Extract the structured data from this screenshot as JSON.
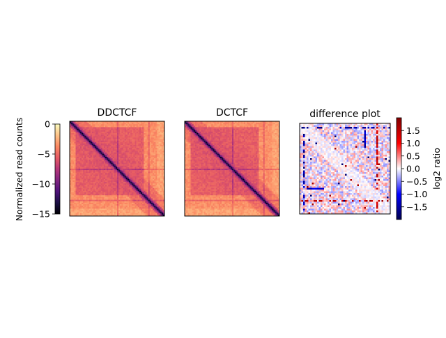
{
  "chart_data": [
    {
      "type": "colorbar",
      "label": "Normalized read counts",
      "colormap": "magma",
      "range": [
        -15,
        0
      ],
      "ticks": [
        0,
        -5,
        -10,
        -15
      ],
      "tick_labels": [
        "0",
        "−5",
        "−10",
        "−15"
      ]
    },
    {
      "type": "heatmap",
      "title": "DDCTCF",
      "colormap": "magma",
      "value_range": [
        -15,
        0
      ],
      "features": {
        "diagonal_value": -14,
        "background_value": -3.5,
        "domain_interior_value": -6,
        "domain_bounds_fraction": [
          0.06,
          0.78
        ],
        "stripe_positions_fraction": [
          0.5,
          0.83
        ]
      }
    },
    {
      "type": "heatmap",
      "title": "DCTCF",
      "colormap": "magma",
      "value_range": [
        -15,
        0
      ],
      "features": {
        "diagonal_value": -14,
        "background_value": -3.5,
        "domain_interior_value": -6,
        "domain_bounds_fraction": [
          0.06,
          0.78
        ],
        "stripe_positions_fraction": [
          0.5,
          0.83
        ]
      }
    },
    {
      "type": "heatmap",
      "title": "difference plot",
      "colormap": "seismic",
      "value_range": [
        -2,
        2
      ]
    },
    {
      "type": "colorbar",
      "label": "log2 ratio",
      "colormap": "seismic",
      "range": [
        -2,
        2
      ],
      "ticks": [
        1.5,
        1.0,
        0.5,
        0.0,
        -0.5,
        -1.0,
        -1.5
      ],
      "tick_labels": [
        "1.5",
        "1.0",
        "0.5",
        "0.0",
        "−0.5",
        "−1.0",
        "−1.5"
      ]
    }
  ]
}
